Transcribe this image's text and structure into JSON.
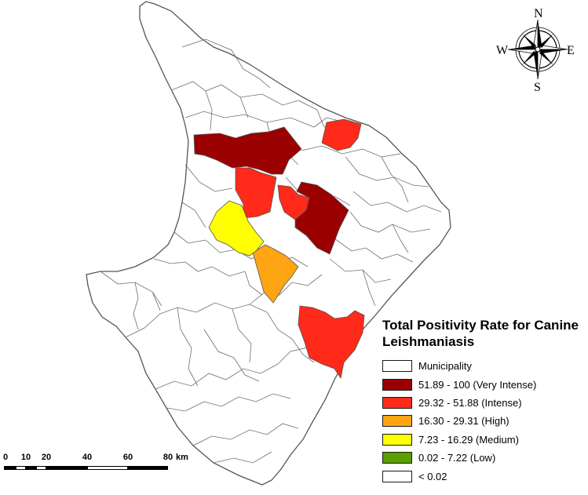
{
  "map": {
    "fill_colors": {
      "municipality": "#ffffff",
      "very_intense": "#9b0000",
      "intense": "#ff2a1a",
      "high": "#ffa514",
      "medium": "#ffff00",
      "low": "#5a9e00"
    },
    "boundary_color": "#555555"
  },
  "compass": {
    "icon": "compass-rose-icon",
    "north": "N",
    "south": "S",
    "east": "E",
    "west": "W"
  },
  "legend": {
    "title_line1": "Total Positivity Rate for Canine",
    "title_line2": "Leishmaniasis",
    "items": [
      {
        "label": "Municipality",
        "color": "#ffffff"
      },
      {
        "label": "51.89 - 100 (Very Intense)",
        "color": "#9b0000"
      },
      {
        "label": "29.32 - 51.88 (Intense)",
        "color": "#ff2a1a"
      },
      {
        "label": "16.30 - 29.31 (High)",
        "color": "#ffa514"
      },
      {
        "label": "7.23 - 16.29 (Medium)",
        "color": "#ffff00"
      },
      {
        "label": "0.02 - 7.22 (Low)",
        "color": "#5a9e00"
      },
      {
        "label": "< 0.02",
        "color": "#ffffff"
      }
    ]
  },
  "scale_bar": {
    "ticks": [
      "0",
      "10",
      "20",
      "40",
      "60",
      "80"
    ],
    "unit": "km"
  }
}
